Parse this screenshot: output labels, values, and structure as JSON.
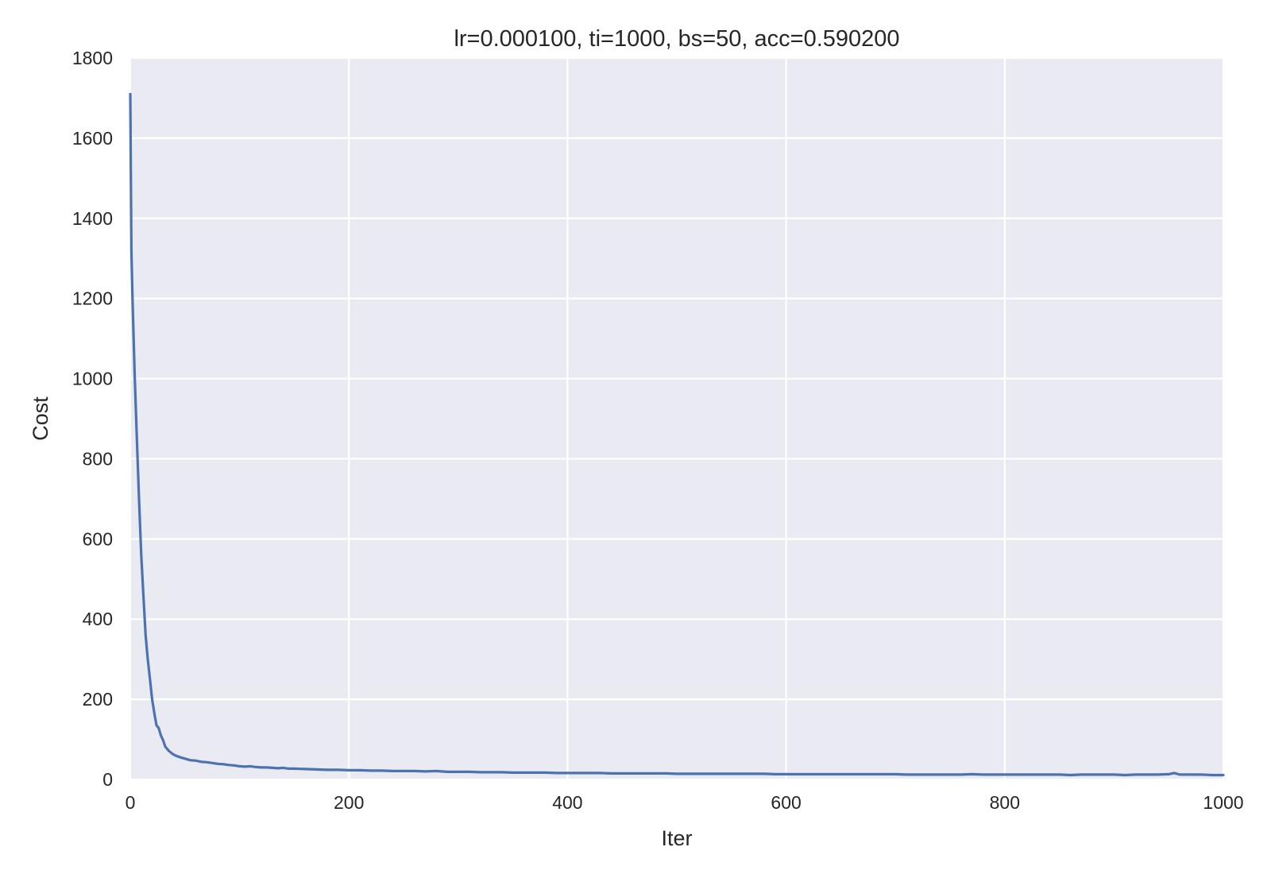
{
  "chart_data": {
    "type": "line",
    "title": "lr=0.000100, ti=1000, bs=50, acc=0.590200",
    "xlabel": "Iter",
    "ylabel": "Cost",
    "xlim": [
      0,
      1000
    ],
    "ylim": [
      0,
      1800
    ],
    "xticks": [
      0,
      200,
      400,
      600,
      800,
      1000
    ],
    "yticks": [
      0,
      200,
      400,
      600,
      800,
      1000,
      1200,
      1400,
      1600,
      1800
    ],
    "grid": true,
    "background_color": "#eaeaf2",
    "series": [
      {
        "color": "#4c72b0",
        "x": [
          0,
          1,
          2,
          4,
          6,
          8,
          10,
          12,
          14,
          16,
          18,
          20,
          22,
          24,
          26,
          28,
          30,
          32,
          35,
          38,
          41,
          45,
          50,
          55,
          60,
          65,
          70,
          75,
          80,
          85,
          90,
          95,
          100,
          105,
          110,
          115,
          120,
          125,
          130,
          135,
          140,
          145,
          150,
          160,
          170,
          180,
          190,
          200,
          210,
          220,
          230,
          240,
          250,
          260,
          270,
          280,
          290,
          300,
          310,
          320,
          330,
          340,
          350,
          360,
          370,
          380,
          390,
          400,
          410,
          420,
          430,
          440,
          450,
          460,
          470,
          480,
          490,
          500,
          510,
          520,
          530,
          540,
          550,
          560,
          570,
          580,
          590,
          600,
          610,
          620,
          630,
          640,
          650,
          660,
          670,
          680,
          690,
          700,
          710,
          720,
          730,
          740,
          750,
          760,
          770,
          780,
          790,
          800,
          810,
          820,
          830,
          840,
          850,
          860,
          870,
          880,
          890,
          900,
          910,
          920,
          930,
          940,
          950,
          955,
          960,
          970,
          980,
          990,
          1000
        ],
        "y": [
          1710,
          1320,
          1200,
          1010,
          850,
          700,
          560,
          460,
          360,
          300,
          250,
          200,
          165,
          135,
          128,
          110,
          98,
          82,
          72,
          65,
          60,
          56,
          52,
          48,
          47,
          44,
          43,
          41,
          39,
          38,
          36,
          35,
          33,
          32,
          33,
          31,
          30,
          30,
          29,
          28,
          29,
          27,
          27,
          26,
          25,
          24,
          24,
          23,
          23,
          22,
          22,
          21,
          21,
          21,
          20,
          21,
          19,
          19,
          19,
          18,
          18,
          18,
          17,
          17,
          17,
          17,
          16,
          16,
          16,
          16,
          16,
          15,
          15,
          15,
          15,
          15,
          15,
          14,
          14,
          14,
          14,
          14,
          14,
          14,
          14,
          14,
          13,
          13,
          13,
          13,
          13,
          13,
          13,
          13,
          13,
          13,
          13,
          13,
          12,
          12,
          12,
          12,
          12,
          12,
          13,
          12,
          12,
          12,
          12,
          12,
          12,
          12,
          12,
          11,
          12,
          12,
          12,
          12,
          11,
          12,
          12,
          12,
          13,
          16,
          12,
          12,
          12,
          11,
          11
        ]
      }
    ]
  }
}
